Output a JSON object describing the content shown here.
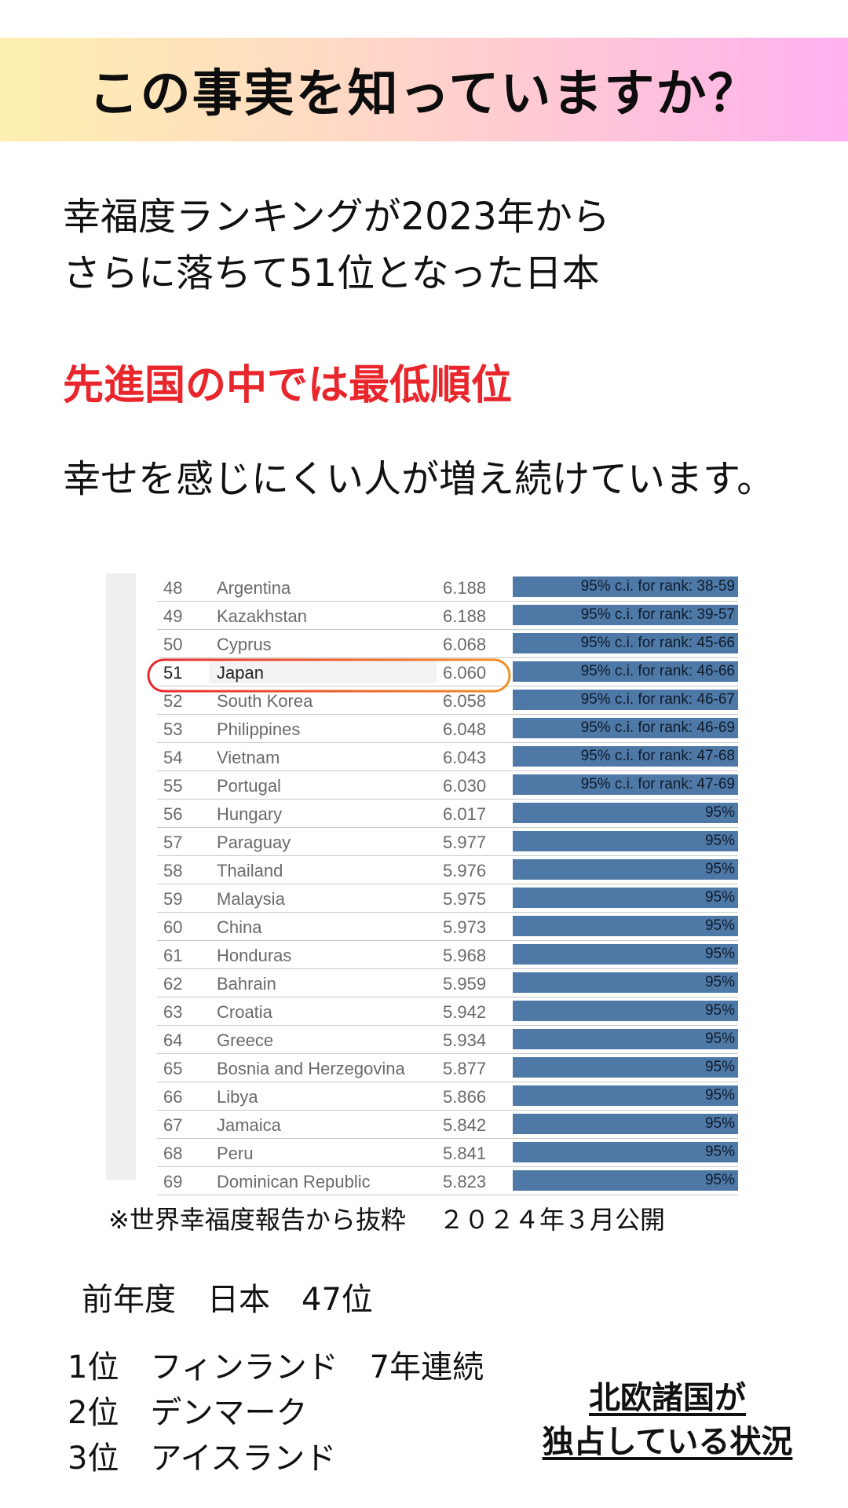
{
  "banner": {
    "title": "この事実を知っていますか？"
  },
  "intro": {
    "line1": "幸福度ランキングが2023年から",
    "line2": "さらに落ちて51位となった日本"
  },
  "highlight": "先進国の中では最低順位",
  "statement": "幸せを感じにくい人が増え続けています。",
  "ranking_table": {
    "rows": [
      {
        "rank": "48",
        "country": "Argentina",
        "score": "6.188",
        "ci": "95% c.i. for rank: 38-59"
      },
      {
        "rank": "49",
        "country": "Kazakhstan",
        "score": "6.188",
        "ci": "95% c.i. for rank: 39-57"
      },
      {
        "rank": "50",
        "country": "Cyprus",
        "score": "6.068",
        "ci": "95% c.i. for rank: 45-66"
      },
      {
        "rank": "51",
        "country": "Japan",
        "score": "6.060",
        "ci": "95% c.i. for rank: 46-66"
      },
      {
        "rank": "52",
        "country": "South Korea",
        "score": "6.058",
        "ci": "95% c.i. for rank: 46-67"
      },
      {
        "rank": "53",
        "country": "Philippines",
        "score": "6.048",
        "ci": "95% c.i. for rank: 46-69"
      },
      {
        "rank": "54",
        "country": "Vietnam",
        "score": "6.043",
        "ci": "95% c.i. for rank: 47-68"
      },
      {
        "rank": "55",
        "country": "Portugal",
        "score": "6.030",
        "ci": "95% c.i. for rank: 47-69"
      },
      {
        "rank": "56",
        "country": "Hungary",
        "score": "6.017",
        "ci": "95%"
      },
      {
        "rank": "57",
        "country": "Paraguay",
        "score": "5.977",
        "ci": "95%"
      },
      {
        "rank": "58",
        "country": "Thailand",
        "score": "5.976",
        "ci": "95%"
      },
      {
        "rank": "59",
        "country": "Malaysia",
        "score": "5.975",
        "ci": "95%"
      },
      {
        "rank": "60",
        "country": "China",
        "score": "5.973",
        "ci": "95%"
      },
      {
        "rank": "61",
        "country": "Honduras",
        "score": "5.968",
        "ci": "95%"
      },
      {
        "rank": "62",
        "country": "Bahrain",
        "score": "5.959",
        "ci": "95%"
      },
      {
        "rank": "63",
        "country": "Croatia",
        "score": "5.942",
        "ci": "95%"
      },
      {
        "rank": "64",
        "country": "Greece",
        "score": "5.934",
        "ci": "95%"
      },
      {
        "rank": "65",
        "country": "Bosnia and Herzegovina",
        "score": "5.877",
        "ci": "95%"
      },
      {
        "rank": "66",
        "country": "Libya",
        "score": "5.866",
        "ci": "95%"
      },
      {
        "rank": "67",
        "country": "Jamaica",
        "score": "5.842",
        "ci": "95%"
      },
      {
        "rank": "68",
        "country": "Peru",
        "score": "5.841",
        "ci": "95%"
      },
      {
        "rank": "69",
        "country": "Dominican Republic",
        "score": "5.823",
        "ci": "95%"
      }
    ],
    "highlighted_country": "Japan",
    "bar_color": "#4e79a7"
  },
  "source_note": "※世界幸福度報告から抜粋　 ２０２４年３月公開",
  "previous_year": "前年度　日本　47位",
  "top3": [
    "1位　フィンランド　7年連続",
    "2位　デンマーク",
    "3位　アイスランド"
  ],
  "nordic_note": {
    "line1": "北欧諸国が",
    "line2": "独占している状況"
  },
  "colors": {
    "accent_red": "#e8262c",
    "ring_orange": "#f0902a"
  }
}
